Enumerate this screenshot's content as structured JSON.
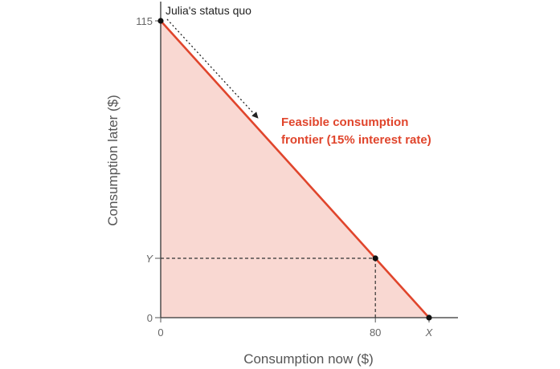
{
  "chart_data": {
    "type": "line",
    "xlabel": "Consumption now ($)",
    "ylabel": "Consumption later ($)",
    "x_tick_labels": [
      "0",
      "80",
      "X"
    ],
    "y_tick_labels": [
      "0",
      "Y",
      "115"
    ],
    "x_ticks": [
      0,
      80,
      100
    ],
    "y_ticks": [
      0,
      23,
      115
    ],
    "xlim": [
      0,
      100
    ],
    "ylim": [
      0,
      115
    ],
    "frontier": {
      "label_line1": "Feasible consumption",
      "label_line2": "frontier (15% interest rate)",
      "points": [
        [
          0,
          115
        ],
        [
          100,
          0
        ]
      ],
      "color": "#e0452c",
      "fill_color": "#f9d8d2"
    },
    "status_quo": {
      "label": "Julia's status quo",
      "x": 0,
      "y": 115
    },
    "marked_points": [
      {
        "name": "status-quo",
        "x": 0,
        "y": 115
      },
      {
        "name": "chosen-point",
        "x": 80,
        "y": 23
      },
      {
        "name": "x-intercept",
        "x": 100,
        "y": 0
      }
    ],
    "arrow": {
      "from": [
        0,
        115
      ],
      "to": [
        33,
        77
      ]
    },
    "grid": false
  }
}
